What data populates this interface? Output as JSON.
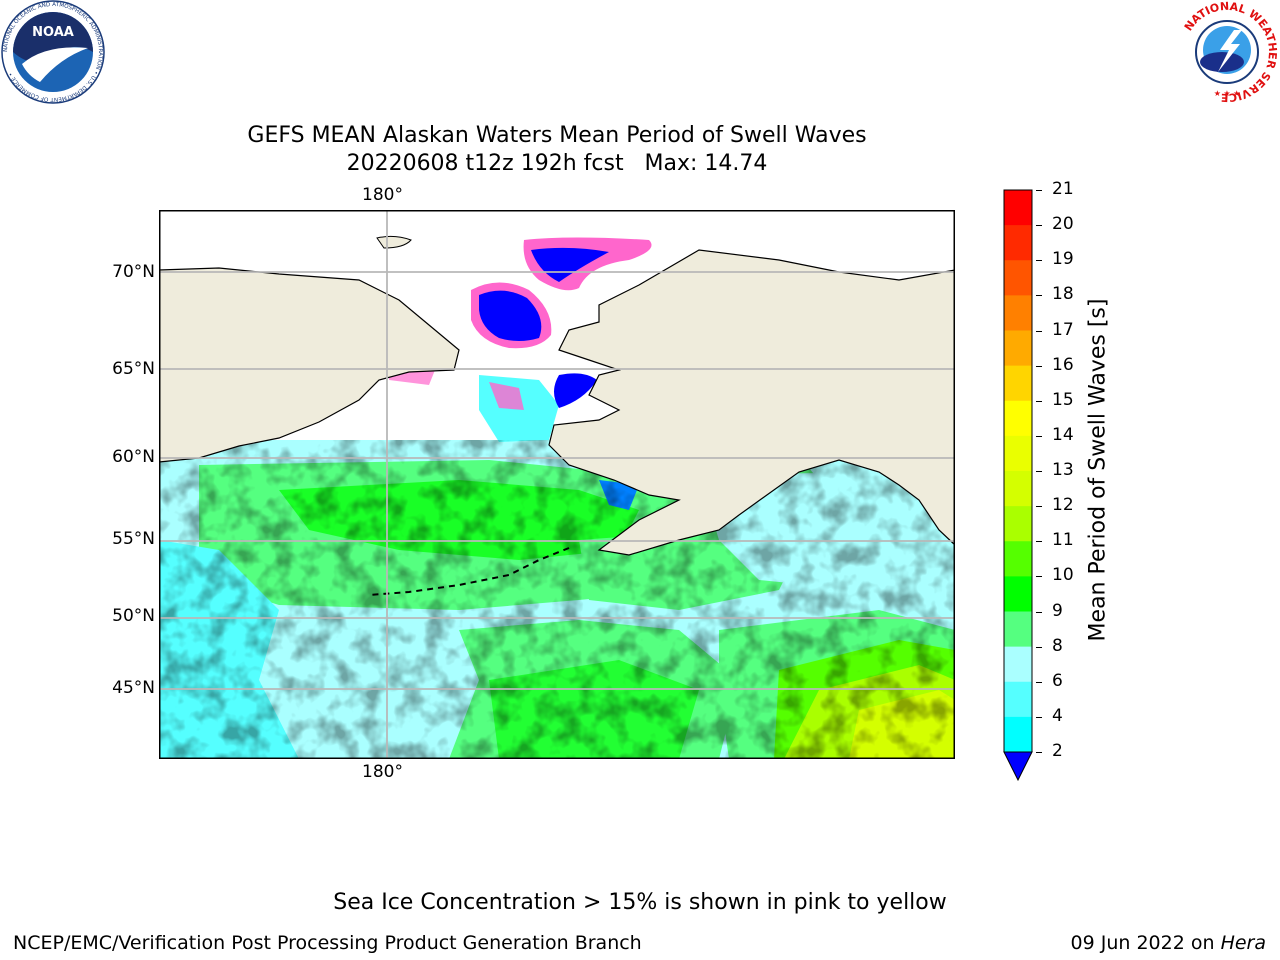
{
  "title": {
    "line1": "GEFS MEAN Alaskan Waters Mean Period of Swell Waves",
    "line2": "20220608 t12z 192h fcst   Max: 14.74"
  },
  "map": {
    "top_lon_label": "180°",
    "bottom_lon_label": "180°",
    "lat_labels": [
      "70°N",
      "65°N",
      "60°N",
      "55°N",
      "50°N",
      "45°N"
    ]
  },
  "colorbar": {
    "label": "Mean Period of Swell Waves [s]",
    "ticks": [
      "21",
      "20",
      "19",
      "18",
      "17",
      "16",
      "15",
      "14",
      "13",
      "12",
      "11",
      "10",
      "9",
      "8",
      "6",
      "4",
      "2"
    ],
    "colors": [
      "#ff0000",
      "#ff2a00",
      "#ff5500",
      "#ff8000",
      "#ffaa00",
      "#ffd500",
      "#ffff00",
      "#eaff00",
      "#d4ff00",
      "#aaff00",
      "#55ff00",
      "#00ff00",
      "#55ff80",
      "#aaffff",
      "#55ffff",
      "#00ffff",
      "#00e6ff",
      "#0080ff",
      "#0000ff"
    ],
    "extend_color": "#0000ff"
  },
  "footer": {
    "note": "Sea Ice Concentration > 15% is shown in pink to yellow",
    "left": "NCEP/EMC/Verification Post Processing Product Generation Branch",
    "date": "09 Jun 2022 on ",
    "machine": "Hera"
  },
  "logos": {
    "noaa_text": "NOAA",
    "noaa_ring": "NATIONAL OCEANIC AND ATMOSPHERIC ADMINISTRATION • U.S. DEPARTMENT OF COMMERCE •",
    "nws_ring": "NATIONAL WEATHER SERVICE"
  }
}
